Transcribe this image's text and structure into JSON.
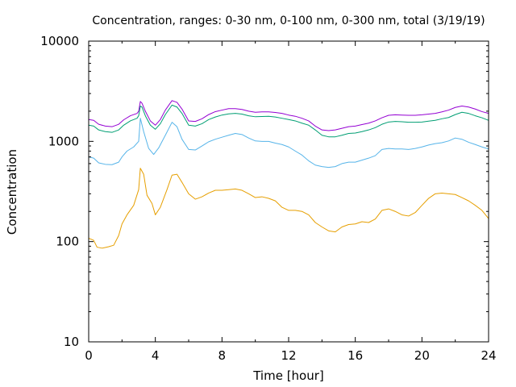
{
  "chart_data": {
    "type": "line",
    "title": "Concentration, ranges: 0-30 nm, 0-100 nm, 0-300 nm, total (3/19/19)",
    "xlabel": "Time [hour]",
    "ylabel": "Concentration",
    "xlim": [
      0,
      24
    ],
    "ylim": [
      10,
      10000
    ],
    "yscale": "log",
    "grid": false,
    "x_ticks": [
      "0",
      "4",
      "8",
      "12",
      "16",
      "20",
      "24"
    ],
    "y_ticks": [
      "10",
      "100",
      "1000",
      "10000"
    ],
    "series": [
      {
        "color": "#e69f00",
        "x": [
          0,
          0.3,
          0.5,
          0.8,
          1.2,
          1.5,
          1.8,
          2.0,
          2.3,
          2.7,
          3.0,
          3.1,
          3.3,
          3.5,
          3.8,
          4.0,
          4.3,
          4.7,
          5.0,
          5.3,
          5.6,
          6.0,
          6.4,
          6.8,
          7.2,
          7.6,
          8.0,
          8.4,
          8.8,
          9.2,
          9.6,
          10.0,
          10.4,
          10.8,
          11.2,
          11.6,
          12.0,
          12.4,
          12.8,
          13.2,
          13.6,
          14.0,
          14.4,
          14.8,
          15.2,
          15.6,
          16.0,
          16.4,
          16.8,
          17.2,
          17.6,
          18.0,
          18.4,
          18.8,
          19.2,
          19.6,
          20.0,
          20.4,
          20.8,
          21.2,
          21.6,
          22.0,
          22.4,
          22.8,
          23.2,
          23.6,
          24.0
        ],
        "values": [
          108,
          103,
          88,
          86,
          89,
          92,
          115,
          150,
          185,
          230,
          330,
          540,
          470,
          290,
          240,
          185,
          220,
          330,
          460,
          470,
          390,
          300,
          265,
          280,
          305,
          325,
          325,
          330,
          335,
          325,
          300,
          275,
          280,
          270,
          255,
          220,
          205,
          205,
          200,
          185,
          155,
          140,
          128,
          125,
          140,
          148,
          150,
          158,
          155,
          168,
          205,
          212,
          200,
          185,
          180,
          195,
          230,
          270,
          300,
          305,
          300,
          295,
          275,
          255,
          230,
          205,
          170
        ]
      },
      {
        "color": "#56b4e9",
        "x": [
          0,
          0.3,
          0.6,
          1.0,
          1.4,
          1.8,
          2.0,
          2.3,
          2.7,
          3.0,
          3.1,
          3.3,
          3.6,
          3.9,
          4.2,
          4.6,
          5.0,
          5.3,
          5.6,
          6.0,
          6.4,
          6.8,
          7.2,
          7.6,
          8.0,
          8.4,
          8.8,
          9.2,
          9.6,
          10.0,
          10.4,
          10.8,
          11.2,
          11.6,
          12.0,
          12.4,
          12.8,
          13.2,
          13.6,
          14.0,
          14.4,
          14.8,
          15.2,
          15.6,
          16.0,
          16.4,
          16.8,
          17.2,
          17.6,
          18.0,
          18.4,
          18.8,
          19.2,
          19.6,
          20.0,
          20.4,
          20.8,
          21.2,
          21.6,
          22.0,
          22.4,
          22.8,
          23.2,
          23.6,
          24.0
        ],
        "values": [
          700,
          680,
          610,
          590,
          585,
          620,
          700,
          800,
          880,
          1000,
          1700,
          1250,
          850,
          740,
          860,
          1150,
          1550,
          1400,
          1050,
          830,
          820,
          900,
          990,
          1050,
          1100,
          1150,
          1200,
          1170,
          1080,
          1010,
          1000,
          1000,
          960,
          930,
          880,
          800,
          730,
          640,
          580,
          560,
          550,
          560,
          600,
          620,
          620,
          650,
          680,
          720,
          830,
          850,
          840,
          840,
          830,
          850,
          880,
          920,
          950,
          970,
          1010,
          1080,
          1050,
          980,
          930,
          880,
          840
        ]
      },
      {
        "color": "#009e73",
        "x": [
          0,
          0.3,
          0.6,
          1.0,
          1.4,
          1.8,
          2.1,
          2.5,
          2.9,
          3.0,
          3.1,
          3.2,
          3.4,
          3.7,
          4.0,
          4.3,
          4.6,
          5.0,
          5.3,
          5.6,
          6.0,
          6.4,
          6.8,
          7.2,
          7.6,
          8.0,
          8.4,
          8.8,
          9.2,
          9.6,
          10.0,
          10.4,
          10.8,
          11.2,
          11.6,
          12.0,
          12.4,
          12.8,
          13.2,
          13.6,
          14.0,
          14.4,
          14.8,
          15.2,
          15.6,
          16.0,
          16.4,
          16.8,
          17.2,
          17.6,
          18.0,
          18.4,
          18.8,
          19.2,
          19.6,
          20.0,
          20.4,
          20.8,
          21.2,
          21.6,
          22.0,
          22.4,
          22.8,
          23.2,
          23.6,
          24.0
        ],
        "values": [
          1450,
          1420,
          1300,
          1250,
          1230,
          1300,
          1450,
          1600,
          1700,
          1800,
          2250,
          2200,
          1800,
          1450,
          1320,
          1500,
          1850,
          2300,
          2200,
          1900,
          1450,
          1420,
          1500,
          1650,
          1750,
          1830,
          1880,
          1900,
          1870,
          1800,
          1760,
          1770,
          1780,
          1750,
          1700,
          1650,
          1600,
          1520,
          1450,
          1300,
          1150,
          1110,
          1110,
          1150,
          1200,
          1210,
          1250,
          1300,
          1370,
          1480,
          1560,
          1580,
          1570,
          1550,
          1550,
          1560,
          1590,
          1620,
          1680,
          1730,
          1850,
          1950,
          1900,
          1800,
          1720,
          1620
        ]
      },
      {
        "color": "#9400d3",
        "x": [
          0,
          0.3,
          0.6,
          1.0,
          1.4,
          1.8,
          2.1,
          2.5,
          2.9,
          3.0,
          3.1,
          3.2,
          3.4,
          3.7,
          4.0,
          4.3,
          4.6,
          5.0,
          5.3,
          5.6,
          6.0,
          6.4,
          6.8,
          7.2,
          7.6,
          8.0,
          8.4,
          8.8,
          9.2,
          9.6,
          10.0,
          10.4,
          10.8,
          11.2,
          11.6,
          12.0,
          12.4,
          12.8,
          13.2,
          13.6,
          14.0,
          14.4,
          14.8,
          15.2,
          15.6,
          16.0,
          16.4,
          16.8,
          17.2,
          17.6,
          18.0,
          18.4,
          18.8,
          19.2,
          19.6,
          20.0,
          20.4,
          20.8,
          21.2,
          21.6,
          22.0,
          22.4,
          22.8,
          23.2,
          23.6,
          24.0
        ],
        "values": [
          1650,
          1620,
          1480,
          1420,
          1400,
          1480,
          1640,
          1800,
          1900,
          2000,
          2500,
          2400,
          2000,
          1600,
          1450,
          1650,
          2050,
          2550,
          2450,
          2100,
          1600,
          1580,
          1680,
          1850,
          1980,
          2050,
          2120,
          2120,
          2080,
          2000,
          1950,
          1970,
          1970,
          1940,
          1900,
          1830,
          1780,
          1700,
          1600,
          1420,
          1300,
          1280,
          1300,
          1350,
          1400,
          1420,
          1470,
          1520,
          1600,
          1720,
          1820,
          1840,
          1830,
          1820,
          1820,
          1840,
          1870,
          1900,
          1970,
          2050,
          2180,
          2250,
          2200,
          2100,
          1980,
          1900
        ]
      }
    ]
  }
}
